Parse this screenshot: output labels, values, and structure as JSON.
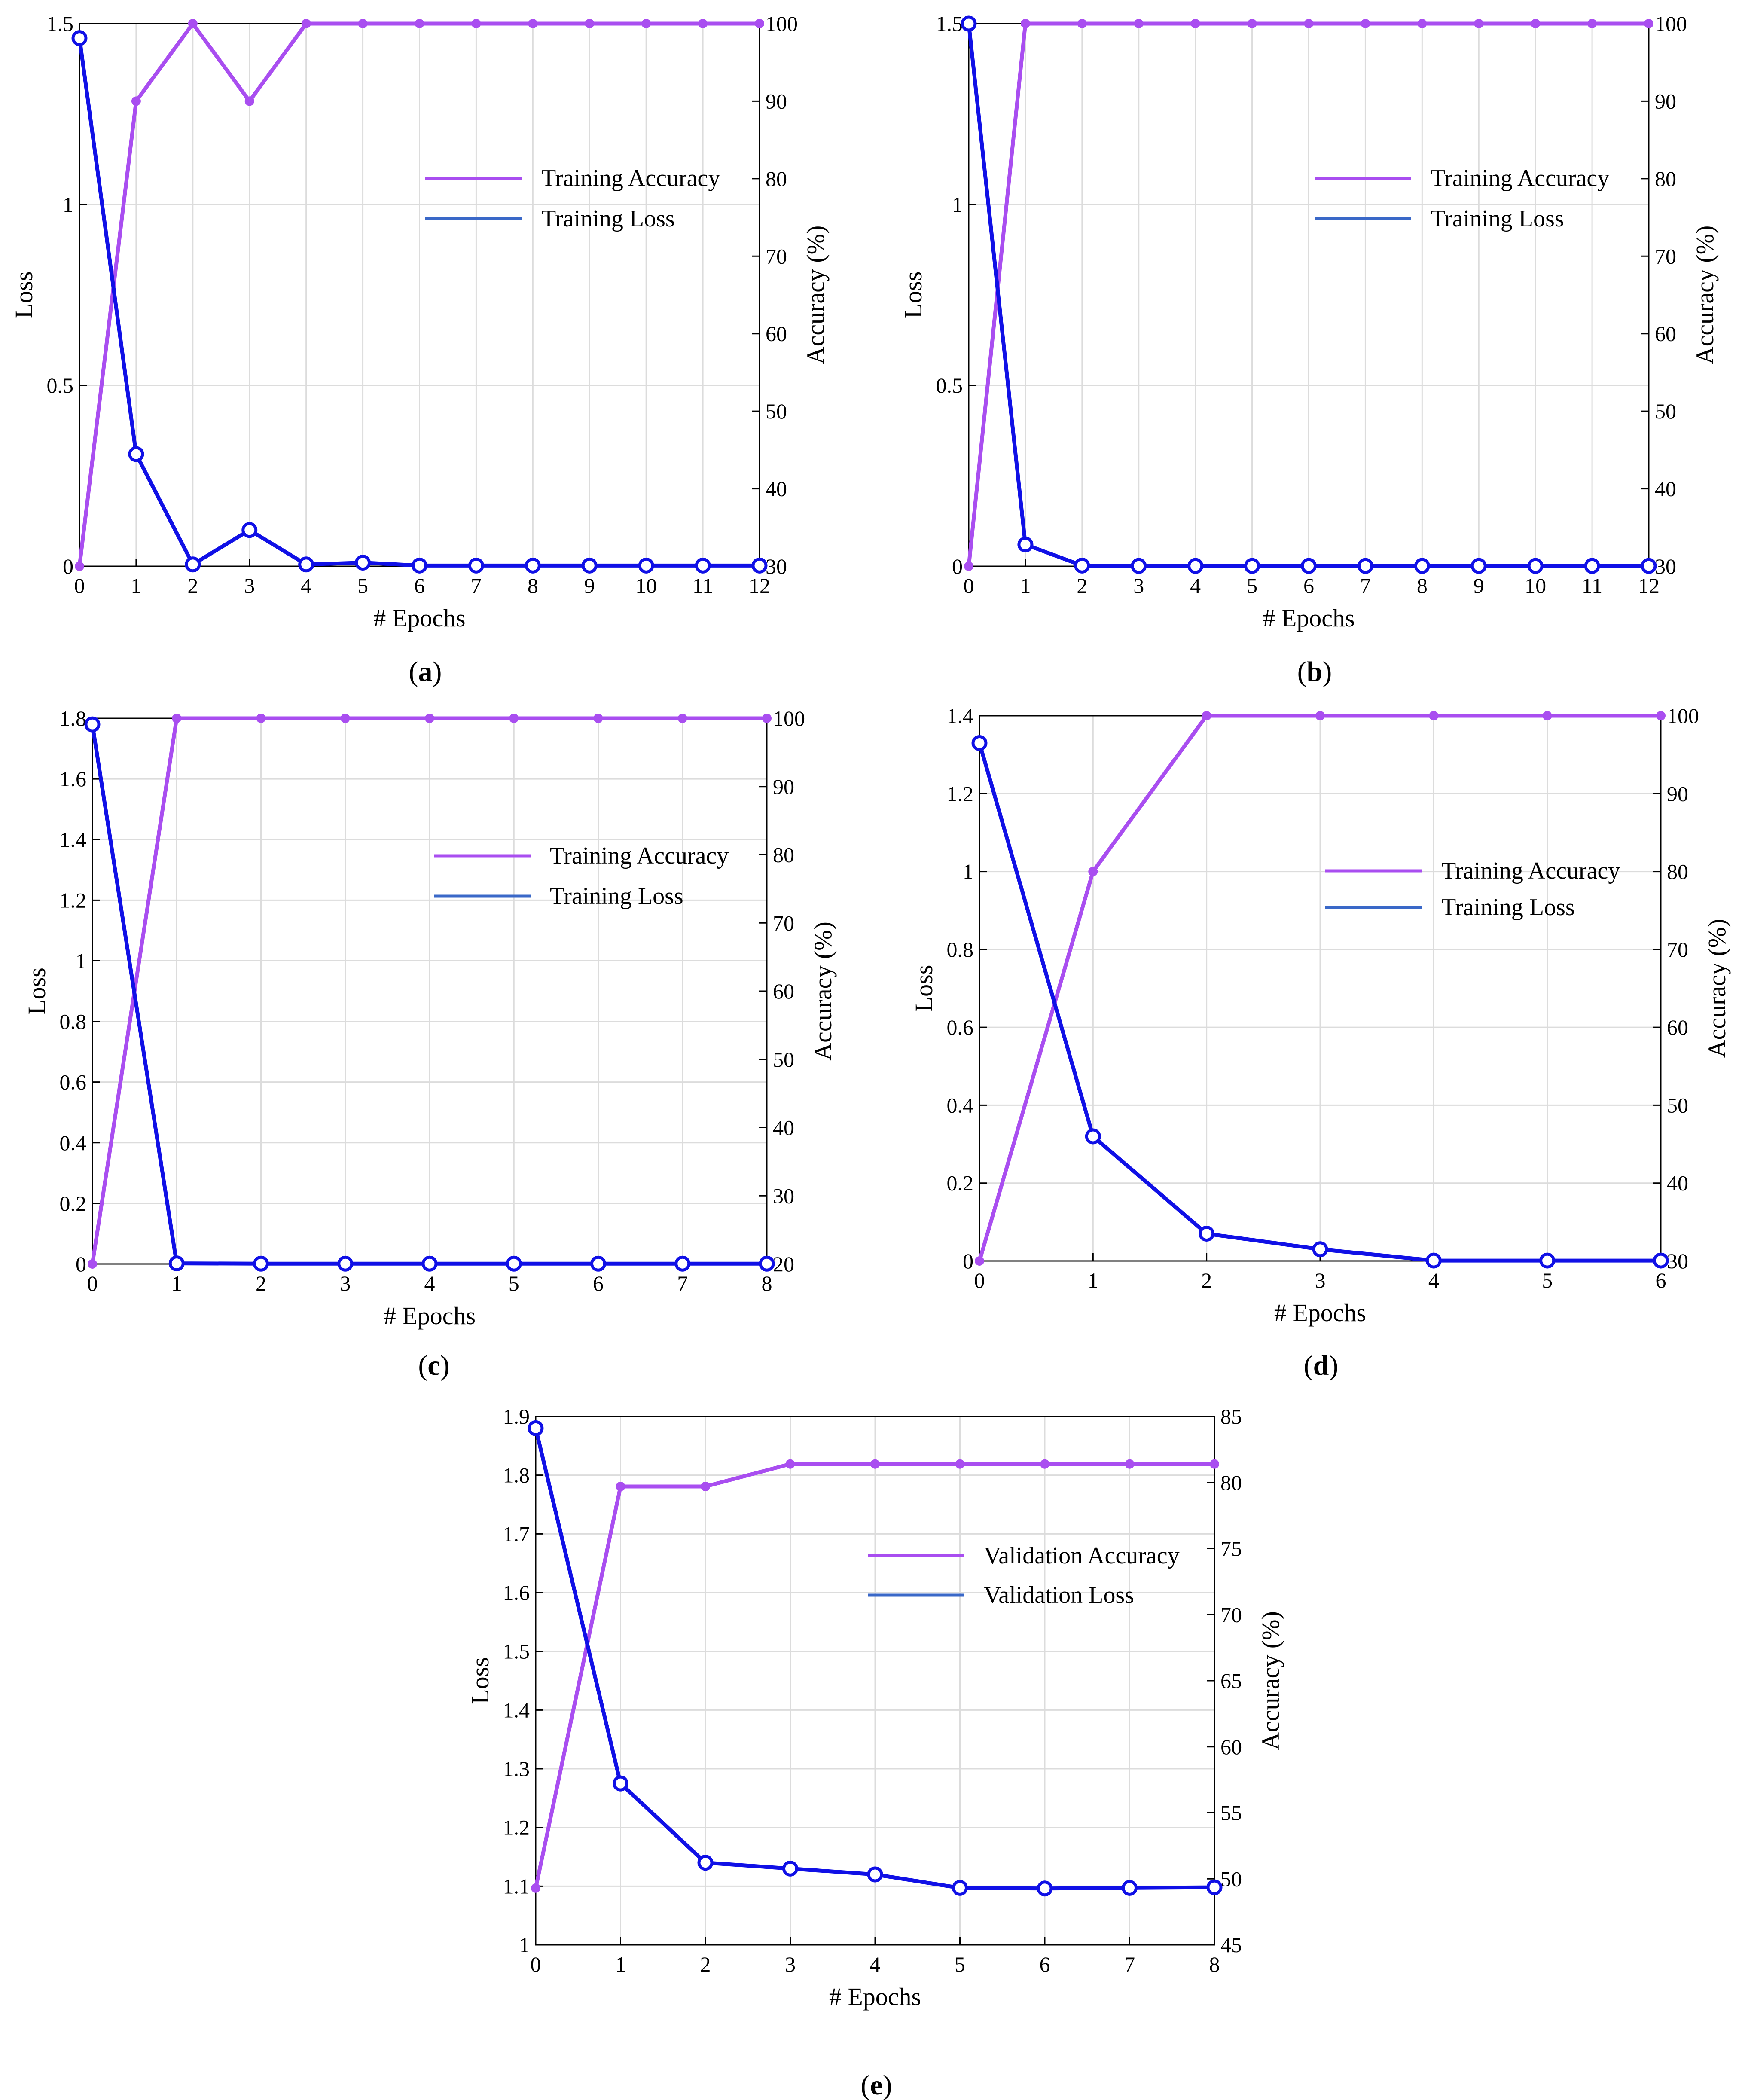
{
  "colors": {
    "accuracy": "#a94ef0",
    "loss": "#1010e6",
    "legend_loss": "#3a68c8",
    "grid": "#dcdcdc",
    "axis": "#000000"
  },
  "chart_data": [
    {
      "id": "a",
      "type": "line",
      "caption": {
        "open": "(",
        "letter": "a",
        "close": ")"
      },
      "xlabel": "# Epochs",
      "ylabel_left": "Loss",
      "ylabel_right": "Accuracy (%)",
      "x": [
        0,
        1,
        2,
        3,
        4,
        5,
        6,
        7,
        8,
        9,
        10,
        11,
        12
      ],
      "xlim": [
        0,
        12
      ],
      "xticks": [
        "0",
        "1",
        "2",
        "3",
        "4",
        "5",
        "6",
        "7",
        "8",
        "9",
        "10",
        "11",
        "12"
      ],
      "ylim_left": [
        0,
        1.5
      ],
      "yticks_left": [
        "0",
        "0.5",
        "1",
        "1.5"
      ],
      "ylim_right": [
        30,
        100
      ],
      "yticks_right": [
        "30",
        "40",
        "50",
        "60",
        "70",
        "80",
        "90",
        "100"
      ],
      "legend": [
        "Training Accuracy",
        "Training Loss"
      ],
      "accuracy": [
        30,
        90,
        100,
        90,
        100,
        100,
        100,
        100,
        100,
        100,
        100,
        100,
        100
      ],
      "loss": [
        1.46,
        0.31,
        0.005,
        0.1,
        0.005,
        0.01,
        0.002,
        0.002,
        0.002,
        0.002,
        0.002,
        0.002,
        0.002
      ]
    },
    {
      "id": "b",
      "type": "line",
      "caption": {
        "open": "(",
        "letter": "b",
        "close": ")"
      },
      "xlabel": "# Epochs",
      "ylabel_left": "Loss",
      "ylabel_right": "Accuracy (%)",
      "x": [
        0,
        1,
        2,
        3,
        4,
        5,
        6,
        7,
        8,
        9,
        10,
        11,
        12
      ],
      "xlim": [
        0,
        12
      ],
      "xticks": [
        "0",
        "1",
        "2",
        "3",
        "4",
        "5",
        "6",
        "7",
        "8",
        "9",
        "10",
        "11",
        "12"
      ],
      "ylim_left": [
        0,
        1.5
      ],
      "yticks_left": [
        "0",
        "0.5",
        "1",
        "1.5"
      ],
      "ylim_right": [
        30,
        100
      ],
      "yticks_right": [
        "30",
        "40",
        "50",
        "60",
        "70",
        "80",
        "90",
        "100"
      ],
      "legend": [
        "Training Accuracy",
        "Training Loss"
      ],
      "accuracy": [
        30,
        100,
        100,
        100,
        100,
        100,
        100,
        100,
        100,
        100,
        100,
        100,
        100
      ],
      "loss": [
        1.5,
        0.06,
        0.002,
        0.001,
        0.001,
        0.001,
        0.001,
        0.001,
        0.001,
        0.001,
        0.001,
        0.001,
        0.001
      ]
    },
    {
      "id": "c",
      "type": "line",
      "caption": {
        "open": "(",
        "letter": "c",
        "close": ")"
      },
      "xlabel": "# Epochs",
      "ylabel_left": "Loss",
      "ylabel_right": "Accuracy (%)",
      "x": [
        0,
        1,
        2,
        3,
        4,
        5,
        6,
        7,
        8
      ],
      "xlim": [
        0,
        8
      ],
      "xticks": [
        "0",
        "1",
        "2",
        "3",
        "4",
        "5",
        "6",
        "7",
        "8"
      ],
      "ylim_left": [
        0,
        1.8
      ],
      "yticks_left": [
        "0",
        "0.2",
        "0.4",
        "0.6",
        "0.8",
        "1",
        "1.2",
        "1.4",
        "1.6",
        "1.8"
      ],
      "ylim_right": [
        20,
        100
      ],
      "yticks_right": [
        "20",
        "30",
        "40",
        "50",
        "60",
        "70",
        "80",
        "90",
        "100"
      ],
      "legend": [
        "Training Accuracy",
        "Training Loss"
      ],
      "accuracy": [
        20,
        100,
        100,
        100,
        100,
        100,
        100,
        100,
        100
      ],
      "loss": [
        1.78,
        0.002,
        0.001,
        0.001,
        0.001,
        0.001,
        0.001,
        0.001,
        0.001
      ]
    },
    {
      "id": "d",
      "type": "line",
      "caption": {
        "open": "(",
        "letter": "d",
        "close": ")"
      },
      "xlabel": "# Epochs",
      "ylabel_left": "Loss",
      "ylabel_right": "Accuracy (%)",
      "x": [
        0,
        1,
        2,
        3,
        4,
        5,
        6
      ],
      "xlim": [
        0,
        6
      ],
      "xticks": [
        "0",
        "1",
        "2",
        "3",
        "4",
        "5",
        "6"
      ],
      "ylim_left": [
        0,
        1.4
      ],
      "yticks_left": [
        "0",
        "0.2",
        "0.4",
        "0.6",
        "0.8",
        "1",
        "1.2",
        "1.4"
      ],
      "ylim_right": [
        30,
        100
      ],
      "yticks_right": [
        "30",
        "40",
        "50",
        "60",
        "70",
        "80",
        "90",
        "100"
      ],
      "legend": [
        "Training Accuracy",
        "Training Loss"
      ],
      "accuracy": [
        30,
        80,
        100,
        100,
        100,
        100,
        100
      ],
      "loss": [
        1.33,
        0.32,
        0.07,
        0.03,
        0.001,
        0.001,
        0.001
      ]
    },
    {
      "id": "e",
      "type": "line",
      "caption": {
        "open": "(",
        "letter": "e",
        "close": ")"
      },
      "xlabel": "# Epochs",
      "ylabel_left": "Loss",
      "ylabel_right": "Accuracy (%)",
      "x": [
        0,
        1,
        2,
        3,
        4,
        5,
        6,
        7,
        8
      ],
      "xlim": [
        0,
        8
      ],
      "xticks": [
        "0",
        "1",
        "2",
        "3",
        "4",
        "5",
        "6",
        "7",
        "8"
      ],
      "ylim_left": [
        1.0,
        1.9
      ],
      "yticks_left": [
        "1",
        "1.1",
        "1.2",
        "1.3",
        "1.4",
        "1.5",
        "1.6",
        "1.7",
        "1.8",
        "1.9"
      ],
      "ylim_right": [
        45,
        85
      ],
      "yticks_right": [
        "45",
        "50",
        "55",
        "60",
        "65",
        "70",
        "75",
        "80",
        "85"
      ],
      "legend": [
        "Validation Accuracy",
        "Validation Loss"
      ],
      "accuracy": [
        49.3,
        79.7,
        79.7,
        81.4,
        81.4,
        81.4,
        81.4,
        81.4,
        81.4
      ],
      "loss": [
        1.88,
        1.275,
        1.14,
        1.13,
        1.12,
        1.097,
        1.096,
        1.097,
        1.098
      ]
    }
  ]
}
